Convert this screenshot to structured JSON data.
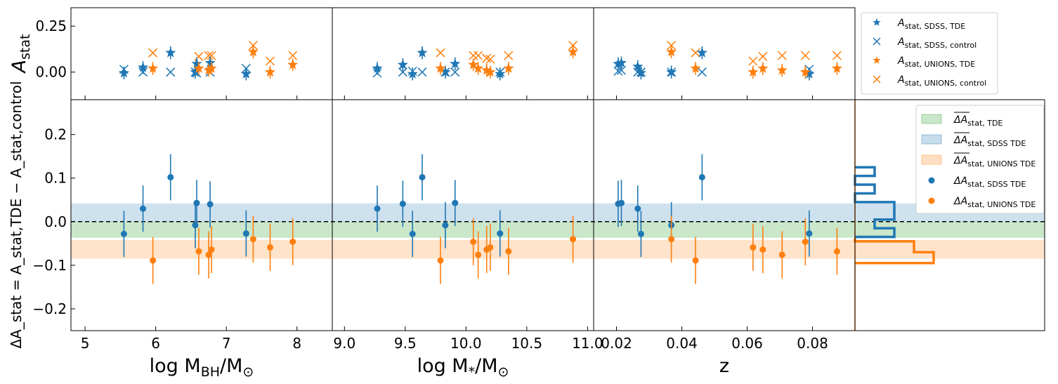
{
  "chart_data": {
    "type": "scatter",
    "colors": {
      "sdss": "#1f77b4",
      "unions": "#ff7f0e",
      "tde_band": "#2ca02c",
      "black": "#000000"
    },
    "top_ylabel": "A_stat",
    "bottom_ylabel": "ΔA_stat = A_stat,TDE − A_stat,control",
    "top_ylim": [
      -0.15,
      0.35
    ],
    "bottom_ylim": [
      -0.25,
      0.28
    ],
    "top_yticks": [
      "0.25",
      "0.00"
    ],
    "bottom_yticks": [
      "0.2",
      "0.1",
      "0.0",
      "−0.1",
      "−0.2"
    ],
    "bands": {
      "tde": [
        -0.037,
        0.0
      ],
      "sdss": [
        0.0,
        0.042
      ],
      "unions": [
        -0.085,
        -0.042
      ]
    },
    "panels": [
      {
        "key": "mbh",
        "xlabel_main": "log M",
        "xlabel_sub": "BH",
        "xlabel_rest": "/M",
        "xlabel_sub2": "⊙",
        "xlim": [
          4.8,
          8.5
        ],
        "xticks": [
          5,
          6,
          7,
          8
        ],
        "xtick_labels": [
          "5",
          "6",
          "7",
          "8"
        ],
        "sdss_x": [
          5.55,
          5.82,
          6.21,
          6.56,
          6.58,
          6.77,
          7.28
        ],
        "sdss_tde": [
          -0.005,
          0.025,
          0.105,
          0.0,
          0.045,
          0.05,
          -0.01
        ],
        "sdss_ctrl": [
          0.015,
          0.0,
          0.0,
          0.0,
          -0.005,
          0.0,
          0.02
        ],
        "sdss_delta": [
          -0.028,
          0.03,
          0.102,
          -0.008,
          0.043,
          0.04,
          -0.027
        ],
        "sdss_err": [
          0.053,
          0.053,
          0.053,
          0.053,
          0.053,
          0.053,
          0.053
        ],
        "unions_x": [
          5.96,
          6.61,
          6.75,
          6.79,
          7.38,
          7.62,
          7.94
        ],
        "unions_tde": [
          0.02,
          0.02,
          0.01,
          0.02,
          0.11,
          0.0,
          0.04
        ],
        "unions_ctrl": [
          0.105,
          0.085,
          0.09,
          0.09,
          0.145,
          0.06,
          0.09
        ],
        "unions_delta": [
          -0.089,
          -0.068,
          -0.076,
          -0.064,
          -0.04,
          -0.059,
          -0.046
        ],
        "unions_err": [
          0.054,
          0.054,
          0.054,
          0.054,
          0.054,
          0.054,
          0.054
        ]
      },
      {
        "key": "mstar",
        "xlabel_main": "log M",
        "xlabel_sub": "*",
        "xlabel_rest": "/M",
        "xlabel_sub2": "⊙",
        "xlim": [
          8.9,
          11.05
        ],
        "xticks": [
          9.0,
          9.5,
          10.0,
          10.5,
          11.0
        ],
        "xtick_labels": [
          "9.0",
          "9.5",
          "10.0",
          "10.5",
          "11.0"
        ],
        "sdss_x": [
          9.27,
          9.48,
          9.56,
          9.64,
          9.83,
          9.91,
          10.28
        ],
        "sdss_tde": [
          0.02,
          0.04,
          -0.01,
          0.105,
          0.0,
          0.045,
          -0.01
        ],
        "sdss_ctrl": [
          -0.005,
          0.0,
          0.005,
          0.0,
          0.0,
          0.0,
          0.0
        ],
        "sdss_delta": [
          0.03,
          0.041,
          -0.028,
          0.102,
          -0.008,
          0.043,
          -0.027
        ],
        "sdss_err": [
          0.053,
          0.053,
          0.053,
          0.053,
          0.053,
          0.053,
          0.053
        ],
        "unions_x": [
          9.79,
          10.06,
          10.1,
          10.17,
          10.2,
          10.35,
          10.88
        ],
        "unions_tde": [
          0.02,
          0.04,
          0.02,
          0.01,
          0.0,
          0.02,
          0.11
        ],
        "unions_ctrl": [
          0.105,
          0.09,
          0.09,
          0.075,
          0.07,
          0.09,
          0.145
        ],
        "unions_delta": [
          -0.089,
          -0.046,
          -0.076,
          -0.064,
          -0.059,
          -0.068,
          -0.04
        ],
        "unions_err": [
          0.054,
          0.054,
          0.054,
          0.054,
          0.054,
          0.054,
          0.054
        ]
      },
      {
        "key": "z",
        "xlabel_main": "z",
        "xlabel_sub": "",
        "xlabel_rest": "",
        "xlabel_sub2": "",
        "xlim": [
          0.013,
          0.093
        ],
        "xticks": [
          0.02,
          0.04,
          0.06,
          0.08
        ],
        "xtick_labels": [
          "0.02",
          "0.04",
          "0.06",
          "0.08"
        ],
        "sdss_x": [
          0.0205,
          0.0215,
          0.0265,
          0.0275,
          0.0368,
          0.0462,
          0.079
        ],
        "sdss_tde": [
          0.045,
          0.05,
          0.03,
          -0.005,
          0.0,
          0.105,
          -0.01
        ],
        "sdss_ctrl": [
          0.005,
          0.01,
          0.0,
          0.0,
          0.0,
          0.0,
          0.015
        ],
        "sdss_delta": [
          0.041,
          0.043,
          0.03,
          -0.028,
          -0.008,
          0.102,
          -0.027
        ],
        "sdss_err": [
          0.053,
          0.053,
          0.053,
          0.053,
          0.053,
          0.053,
          0.053
        ],
        "unions_x": [
          0.0368,
          0.0442,
          0.0618,
          0.0648,
          0.0707,
          0.0778,
          0.0875
        ],
        "unions_tde": [
          0.11,
          0.02,
          0.0,
          0.02,
          0.01,
          0.0,
          0.02
        ],
        "unions_ctrl": [
          0.145,
          0.105,
          0.06,
          0.085,
          0.09,
          0.09,
          0.09
        ],
        "unions_delta": [
          -0.04,
          -0.089,
          -0.059,
          -0.064,
          -0.076,
          -0.046,
          -0.068
        ],
        "unions_err": [
          0.054,
          0.054,
          0.054,
          0.054,
          0.054,
          0.054,
          0.054
        ]
      }
    ],
    "histogram": {
      "sdss_edges": [
        -0.035,
        -0.015,
        0.005,
        0.025,
        0.045,
        0.065,
        0.085,
        0.105,
        0.125
      ],
      "sdss_counts": [
        2,
        1,
        2,
        2,
        0,
        1,
        0,
        1
      ],
      "unions_edges": [
        -0.095,
        -0.07,
        -0.045,
        -0.038
      ],
      "unions_counts": [
        4,
        3,
        0
      ]
    },
    "top_legend": [
      {
        "marker": "star",
        "color": "sdss",
        "label": "A",
        "sub": "stat, SDSS, TDE"
      },
      {
        "marker": "x",
        "color": "sdss",
        "label": "A",
        "sub": "stat, SDSS, control"
      },
      {
        "marker": "star",
        "color": "unions",
        "label": "A",
        "sub": "stat, UNIONS, TDE"
      },
      {
        "marker": "x",
        "color": "unions",
        "label": "A",
        "sub": "stat, UNIONS, control"
      }
    ],
    "bottom_legend": [
      {
        "marker": "band",
        "color": "tde_band",
        "label": "ΔA",
        "sub": "stat, TDE",
        "bar": true
      },
      {
        "marker": "band",
        "color": "sdss",
        "label": "ΔA",
        "sub": "stat, SDSS TDE",
        "bar": true
      },
      {
        "marker": "band",
        "color": "unions",
        "label": "ΔA",
        "sub": "stat, UNIONS TDE",
        "bar": true
      },
      {
        "marker": "dot",
        "color": "sdss",
        "label": "ΔA",
        "sub": "stat, SDSS TDE",
        "bar": false
      },
      {
        "marker": "dot",
        "color": "unions",
        "label": "ΔA",
        "sub": "stat, UNIONS TDE",
        "bar": false
      }
    ]
  }
}
